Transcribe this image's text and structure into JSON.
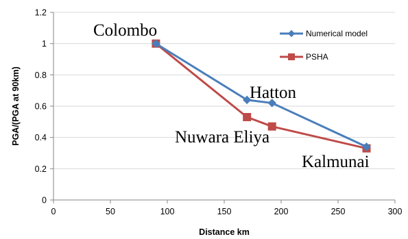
{
  "chart_data": {
    "type": "line",
    "xlabel": "Distance km",
    "ylabel": "PGA/(PGA at 90km)",
    "xlim": [
      0,
      300
    ],
    "ylim": [
      0,
      1.2
    ],
    "xticks": [
      0,
      50,
      100,
      150,
      200,
      250,
      300
    ],
    "yticks": [
      0,
      0.2,
      0.4,
      0.6,
      0.8,
      1,
      1.2
    ],
    "grid": "horizontal",
    "legend": "top-right",
    "series": [
      {
        "name": "Numerical model",
        "color": "#4a7ebb",
        "marker": "diamond",
        "x": [
          90,
          170,
          192,
          275
        ],
        "y": [
          1.0,
          0.64,
          0.62,
          0.34
        ]
      },
      {
        "name": "PSHA",
        "color": "#be4b48",
        "marker": "square",
        "x": [
          90,
          170,
          192,
          275
        ],
        "y": [
          1.0,
          0.53,
          0.47,
          0.33
        ]
      }
    ],
    "annotations": [
      {
        "text": "Colombo"
      },
      {
        "text": "Hatton"
      },
      {
        "text": "Nuwara Eliya"
      },
      {
        "text": "Kalmunai"
      }
    ]
  }
}
